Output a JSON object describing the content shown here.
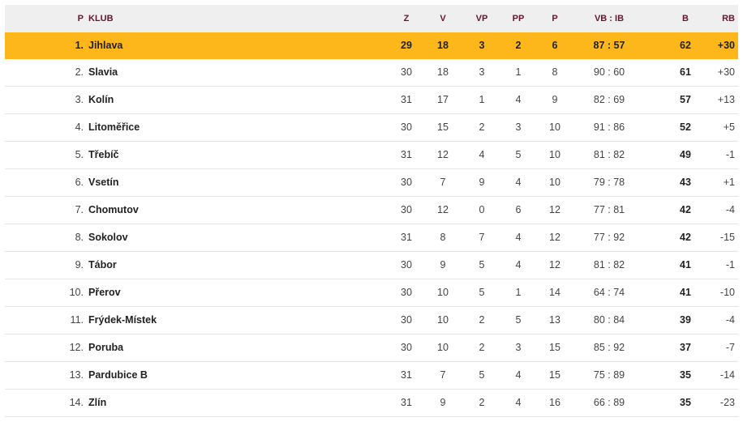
{
  "header": {
    "pos": "P",
    "club": "KLUB",
    "z": "Z",
    "v": "V",
    "vp": "VP",
    "pp": "PP",
    "p": "P",
    "score": "VB : IB",
    "b": "B",
    "rb": "RB"
  },
  "highlight_color": "#fdb71a",
  "rows": [
    {
      "pos": "1.",
      "club": "Jihlava",
      "z": "29",
      "v": "18",
      "vp": "3",
      "pp": "2",
      "p": "6",
      "score": "87 : 57",
      "b": "62",
      "rb": "+30"
    },
    {
      "pos": "2.",
      "club": "Slavia",
      "z": "30",
      "v": "18",
      "vp": "3",
      "pp": "1",
      "p": "8",
      "score": "90 : 60",
      "b": "61",
      "rb": "+30"
    },
    {
      "pos": "3.",
      "club": "Kolín",
      "z": "31",
      "v": "17",
      "vp": "1",
      "pp": "4",
      "p": "9",
      "score": "82 : 69",
      "b": "57",
      "rb": "+13"
    },
    {
      "pos": "4.",
      "club": "Litoměřice",
      "z": "30",
      "v": "15",
      "vp": "2",
      "pp": "3",
      "p": "10",
      "score": "91 : 86",
      "b": "52",
      "rb": "+5"
    },
    {
      "pos": "5.",
      "club": "Třebíč",
      "z": "31",
      "v": "12",
      "vp": "4",
      "pp": "5",
      "p": "10",
      "score": "81 : 82",
      "b": "49",
      "rb": "-1"
    },
    {
      "pos": "6.",
      "club": "Vsetín",
      "z": "30",
      "v": "7",
      "vp": "9",
      "pp": "4",
      "p": "10",
      "score": "79 : 78",
      "b": "43",
      "rb": "+1"
    },
    {
      "pos": "7.",
      "club": "Chomutov",
      "z": "30",
      "v": "12",
      "vp": "0",
      "pp": "6",
      "p": "12",
      "score": "77 : 81",
      "b": "42",
      "rb": "-4"
    },
    {
      "pos": "8.",
      "club": "Sokolov",
      "z": "31",
      "v": "8",
      "vp": "7",
      "pp": "4",
      "p": "12",
      "score": "77 : 92",
      "b": "42",
      "rb": "-15"
    },
    {
      "pos": "9.",
      "club": "Tábor",
      "z": "30",
      "v": "9",
      "vp": "5",
      "pp": "4",
      "p": "12",
      "score": "81 : 82",
      "b": "41",
      "rb": "-1"
    },
    {
      "pos": "10.",
      "club": "Přerov",
      "z": "30",
      "v": "10",
      "vp": "5",
      "pp": "1",
      "p": "14",
      "score": "64 : 74",
      "b": "41",
      "rb": "-10"
    },
    {
      "pos": "11.",
      "club": "Frýdek-Místek",
      "z": "30",
      "v": "10",
      "vp": "2",
      "pp": "5",
      "p": "13",
      "score": "80 : 84",
      "b": "39",
      "rb": "-4"
    },
    {
      "pos": "12.",
      "club": "Poruba",
      "z": "30",
      "v": "10",
      "vp": "2",
      "pp": "3",
      "p": "15",
      "score": "85 : 92",
      "b": "37",
      "rb": "-7"
    },
    {
      "pos": "13.",
      "club": "Pardubice B",
      "z": "31",
      "v": "7",
      "vp": "5",
      "pp": "4",
      "p": "15",
      "score": "75 : 89",
      "b": "35",
      "rb": "-14"
    },
    {
      "pos": "14.",
      "club": "Zlín",
      "z": "31",
      "v": "9",
      "vp": "2",
      "pp": "4",
      "p": "16",
      "score": "66 : 89",
      "b": "35",
      "rb": "-23"
    }
  ]
}
